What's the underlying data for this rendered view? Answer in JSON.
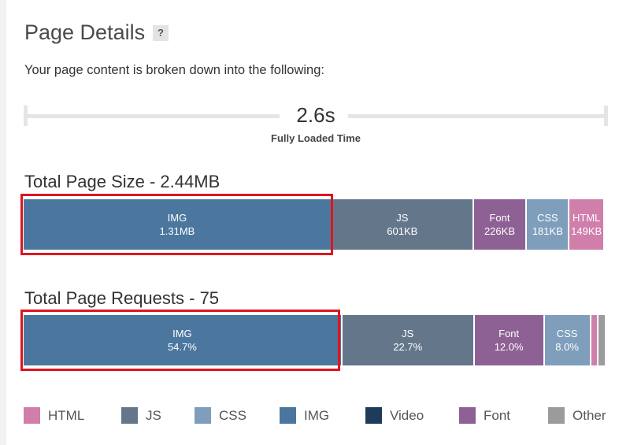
{
  "header": {
    "title": "Page Details",
    "help_label": "?",
    "subtitle": "Your page content is broken down into the following:"
  },
  "timeline": {
    "value": "2.6s",
    "label": "Fully Loaded Time"
  },
  "colors": {
    "HTML": "#d07fab",
    "JS": "#64778a",
    "CSS": "#7e9ebb",
    "IMG": "#4b779e",
    "Video": "#1e3b5c",
    "Font": "#8e6194",
    "Other": "#9b9b9b"
  },
  "chart_data": [
    {
      "type": "bar",
      "title": "Total Page Size - 2.44MB",
      "categories": [
        "IMG",
        "JS",
        "Font",
        "CSS",
        "HTML",
        "Other"
      ],
      "labels": [
        "1.31MB",
        "601KB",
        "226KB",
        "181KB",
        "149KB",
        ""
      ],
      "values_kb": [
        1310,
        601,
        226,
        181,
        149,
        5
      ]
    },
    {
      "type": "bar",
      "title": "Total Page Requests - 75",
      "categories": [
        "IMG",
        "JS",
        "Font",
        "CSS",
        "HTML",
        "Other"
      ],
      "labels": [
        "54.7%",
        "22.7%",
        "12.0%",
        "8.0%",
        "",
        ""
      ],
      "values_pct": [
        54.7,
        22.7,
        12.0,
        8.0,
        1.3,
        1.3
      ]
    }
  ],
  "legend": [
    {
      "label": "HTML",
      "key": "HTML"
    },
    {
      "label": "JS",
      "key": "JS"
    },
    {
      "label": "CSS",
      "key": "CSS"
    },
    {
      "label": "IMG",
      "key": "IMG"
    },
    {
      "label": "Video",
      "key": "Video"
    },
    {
      "label": "Font",
      "key": "Font"
    },
    {
      "label": "Other",
      "key": "Other"
    }
  ]
}
